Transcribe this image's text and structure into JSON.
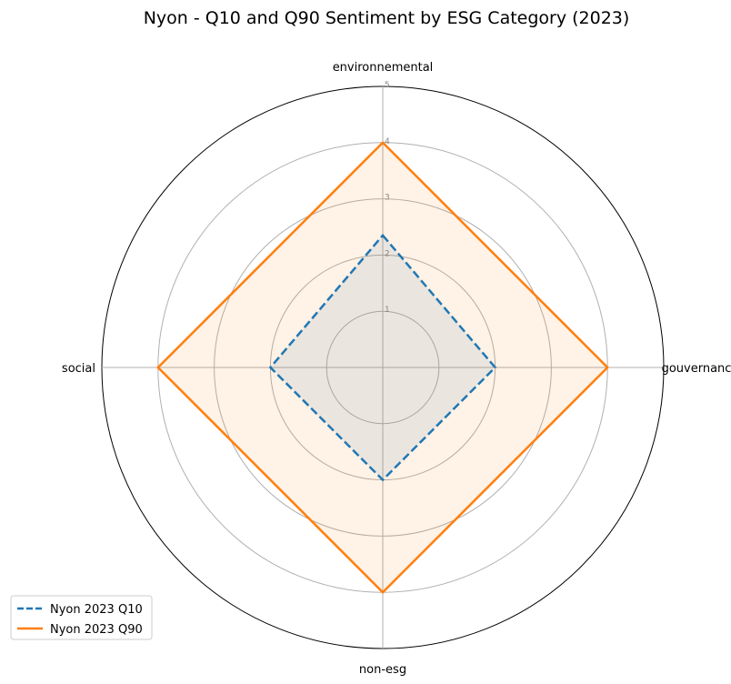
{
  "chart_data": {
    "type": "radar",
    "title": "Nyon - Q10 and Q90 Sentiment by ESG Category (2023)",
    "categories": [
      "environnemental",
      "gouvernance",
      "non-esg",
      "social"
    ],
    "rlim": [
      0,
      5
    ],
    "rticks": [
      "1",
      "2",
      "3",
      "4",
      "5"
    ],
    "grid": true,
    "legend_position": "bottom-left",
    "series": [
      {
        "name": "Nyon 2023 Q10",
        "values": [
          2.35,
          2.0,
          2.0,
          2.0
        ],
        "color": "#1f77b4",
        "line_style": "dashed",
        "fill": "#1f77b4"
      },
      {
        "name": "Nyon 2023 Q90",
        "values": [
          4.0,
          4.0,
          4.0,
          4.0
        ],
        "color": "#ff7f0e",
        "line_style": "solid",
        "fill": "#ff7f0e"
      }
    ]
  }
}
